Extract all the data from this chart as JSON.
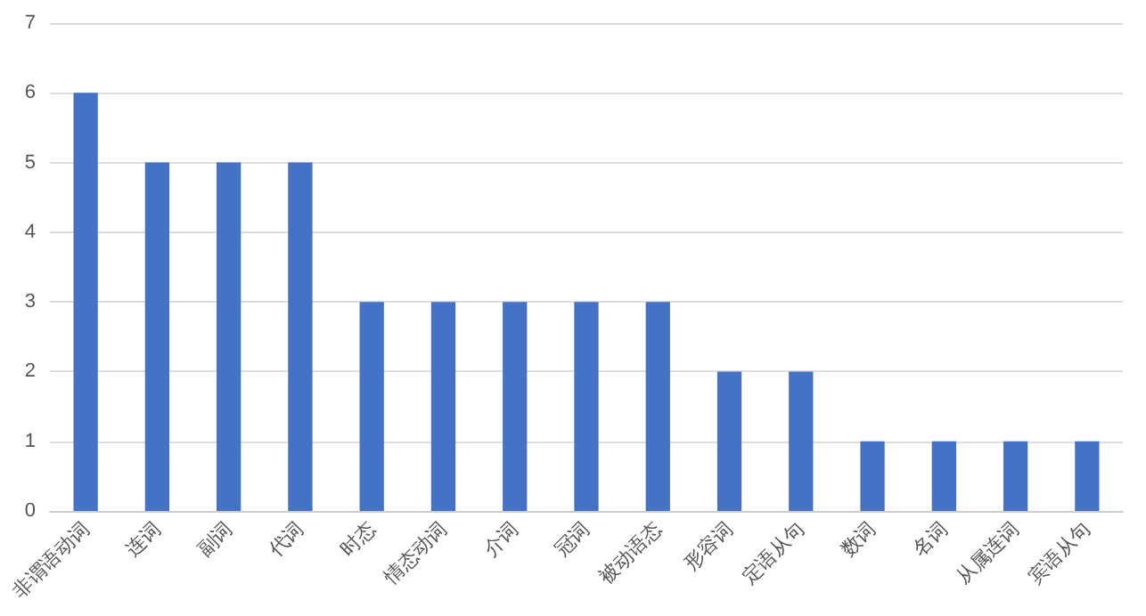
{
  "chart_data": {
    "type": "bar",
    "categories": [
      "非谓语动词",
      "连词",
      "副词",
      "代词",
      "时态",
      "情态动词",
      "介词",
      "冠词",
      "被动语态",
      "形容词",
      "定语从句",
      "数词",
      "名词",
      "从属连词",
      "宾语从句"
    ],
    "values": [
      6,
      5,
      5,
      5,
      3,
      3,
      3,
      3,
      3,
      2,
      2,
      1,
      1,
      1,
      1
    ],
    "color": "#4472c4",
    "ylim": [
      0,
      7
    ],
    "yticks": [
      0,
      1,
      2,
      3,
      4,
      5,
      6,
      7
    ],
    "grid": "y"
  }
}
